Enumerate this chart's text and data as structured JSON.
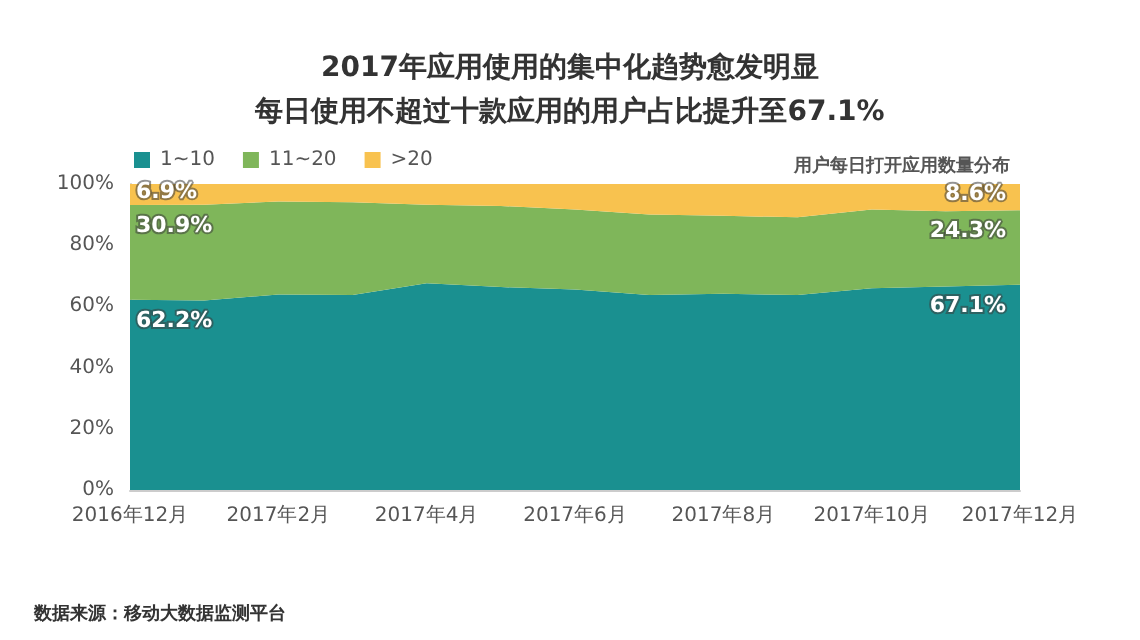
{
  "chart_data": {
    "type": "area",
    "stacked": true,
    "title": "2017年应用使用的集中化趋势愈发明显",
    "subtitle": "每日使用不超过十款应用的用户占比提升至67.1%",
    "annotations": [
      "用户每日打开应用数量分布",
      "数据来源：移动大数据监测平台"
    ],
    "categories": [
      "2016年12月",
      null,
      "2017年2月",
      null,
      "2017年4月",
      null,
      "2017年6月",
      null,
      "2017年8月",
      null,
      "2017年10月",
      null,
      "2017年12月"
    ],
    "series": [
      {
        "name": "1~10",
        "color": "#1a9090",
        "values": [
          62.2,
          61.9,
          63.9,
          63.7,
          67.6,
          66.3,
          65.5,
          63.7,
          64.1,
          63.7,
          65.9,
          66.5,
          67.1
        ],
        "value_labels": [
          "62.2%",
          null,
          null,
          null,
          null,
          null,
          null,
          null,
          null,
          null,
          null,
          null,
          "67.1%"
        ]
      },
      {
        "name": "11~20",
        "color": "#7fb65a",
        "values": [
          30.9,
          31.3,
          30.4,
          30.3,
          25.6,
          26.5,
          26.2,
          26.3,
          25.5,
          25.4,
          25.8,
          24.6,
          24.3
        ],
        "value_labels": [
          "30.9%",
          null,
          null,
          null,
          null,
          null,
          null,
          null,
          null,
          null,
          null,
          null,
          "24.3%"
        ]
      },
      {
        "name": ">20",
        "color": "#f8c24f",
        "values": [
          6.9,
          6.8,
          5.7,
          6.0,
          6.8,
          7.2,
          8.3,
          10.0,
          10.4,
          10.9,
          8.3,
          8.9,
          8.6
        ],
        "value_labels": [
          "6.9%",
          null,
          null,
          null,
          null,
          null,
          null,
          null,
          null,
          null,
          null,
          null,
          "8.6%"
        ]
      }
    ],
    "ylim": [
      0,
      100
    ],
    "yticks": [
      {
        "value": 0,
        "label": "0%"
      },
      {
        "value": 20,
        "label": "20%"
      },
      {
        "value": 40,
        "label": "40%"
      },
      {
        "value": 60,
        "label": "60%"
      },
      {
        "value": 80,
        "label": "80%"
      },
      {
        "value": 100,
        "label": "100%"
      }
    ],
    "grid": false,
    "legend": "top left"
  }
}
